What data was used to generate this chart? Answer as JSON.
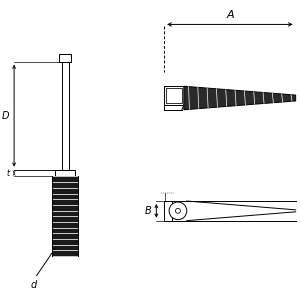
{
  "bg_color": "#ffffff",
  "line_color": "#000000",
  "fig_width": 3.0,
  "fig_height": 3.0,
  "dpi": 100,
  "label_A": "A",
  "label_B": "B",
  "label_D": "D",
  "label_d": "d"
}
